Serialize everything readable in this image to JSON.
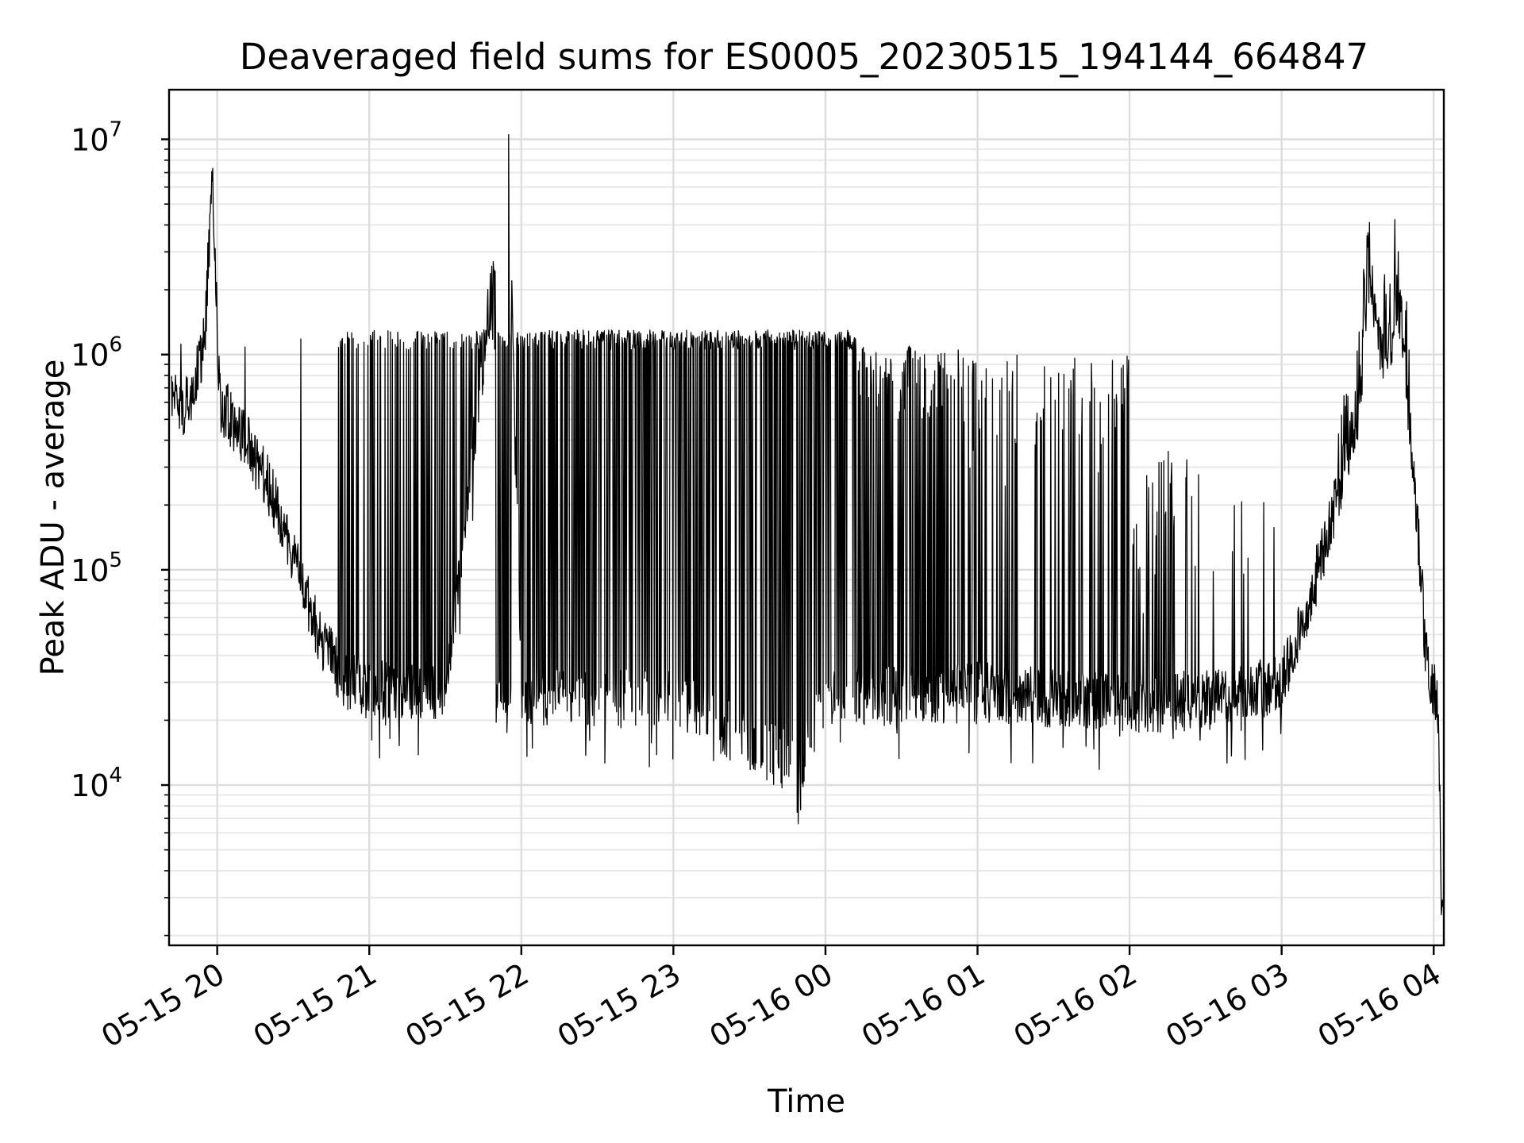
{
  "chart_data": {
    "type": "line",
    "title": "Deaveraged field sums for ES0005_20230515_194144_664847",
    "xlabel": "Time",
    "ylabel": "Peak ADU - average",
    "yscale": "log",
    "ylim": [
      1800,
      17000000
    ],
    "xlim": [
      "2023-05-15 19:41",
      "2023-05-16 04:04"
    ],
    "grid": true,
    "line_color": "#000000",
    "x_ticks": [
      {
        "value": "2023-05-15 20:00",
        "label": "05-15 20"
      },
      {
        "value": "2023-05-15 21:00",
        "label": "05-15 21"
      },
      {
        "value": "2023-05-15 22:00",
        "label": "05-15 22"
      },
      {
        "value": "2023-05-15 23:00",
        "label": "05-15 23"
      },
      {
        "value": "2023-05-16 00:00",
        "label": "05-16 00"
      },
      {
        "value": "2023-05-16 01:00",
        "label": "05-16 01"
      },
      {
        "value": "2023-05-16 02:00",
        "label": "05-16 02"
      },
      {
        "value": "2023-05-16 03:00",
        "label": "05-16 03"
      },
      {
        "value": "2023-05-16 04:00",
        "label": "05-16 04"
      }
    ],
    "y_ticks": [
      {
        "value": 10000,
        "base": "10",
        "exp": "4"
      },
      {
        "value": 100000,
        "base": "10",
        "exp": "5"
      },
      {
        "value": 1000000,
        "base": "10",
        "exp": "6"
      },
      {
        "value": 10000000,
        "base": "10",
        "exp": "7"
      }
    ],
    "series": [
      {
        "values": [
          {
            "x": "2023-05-15 19:42",
            "y": 700000
          },
          {
            "x": "2023-05-15 19:46",
            "y": 560000
          },
          {
            "x": "2023-05-15 19:50",
            "y": 650000
          },
          {
            "x": "2023-05-15 19:55",
            "y": 1150000
          },
          {
            "x": "2023-05-15 19:58",
            "y": 6400000
          },
          {
            "x": "2023-05-15 20:01",
            "y": 600000
          },
          {
            "x": "2023-05-15 20:10",
            "y": 420000
          },
          {
            "x": "2023-05-15 20:20",
            "y": 250000
          },
          {
            "x": "2023-05-15 20:30",
            "y": 120000
          },
          {
            "x": "2023-05-15 20:40",
            "y": 50000
          },
          {
            "x": "2023-05-15 20:50",
            "y": 30000
          },
          {
            "x": "2023-05-15 21:00",
            "y": 28000
          },
          {
            "x": "2023-05-15 21:30",
            "y": 27000
          },
          {
            "x": "2023-05-15 21:55",
            "y": 10500000
          },
          {
            "x": "2023-05-15 22:00",
            "y": 26000
          },
          {
            "x": "2023-05-15 23:00",
            "y": 25000
          },
          {
            "x": "2023-05-15 23:50",
            "y": 12000
          },
          {
            "x": "2023-05-16 00:00",
            "y": 26000
          },
          {
            "x": "2023-05-16 01:00",
            "y": 27000
          },
          {
            "x": "2023-05-16 02:00",
            "y": 24000
          },
          {
            "x": "2023-05-16 02:40",
            "y": 25000
          },
          {
            "x": "2023-05-16 03:00",
            "y": 30000
          },
          {
            "x": "2023-05-16 03:10",
            "y": 65000
          },
          {
            "x": "2023-05-16 03:20",
            "y": 180000
          },
          {
            "x": "2023-05-16 03:30",
            "y": 550000
          },
          {
            "x": "2023-05-16 03:35",
            "y": 2200000
          },
          {
            "x": "2023-05-16 03:40",
            "y": 900000
          },
          {
            "x": "2023-05-16 03:47",
            "y": 1550000
          },
          {
            "x": "2023-05-16 03:53",
            "y": 200000
          },
          {
            "x": "2023-05-16 03:57",
            "y": 40000
          },
          {
            "x": "2023-05-16 04:02",
            "y": 22000
          },
          {
            "x": "2023-05-16 04:03",
            "y": 2500
          }
        ]
      }
    ]
  }
}
